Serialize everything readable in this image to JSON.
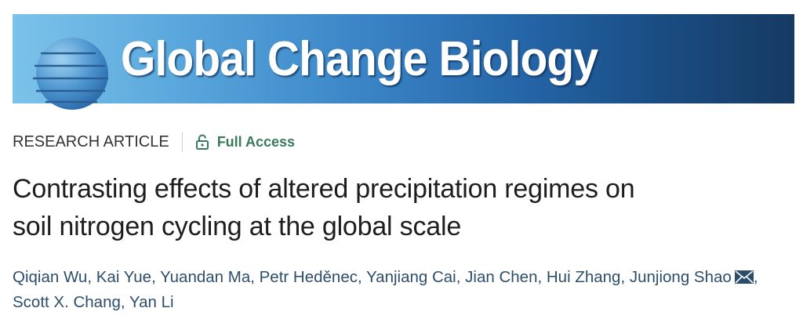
{
  "banner": {
    "journal_name": "Global Change Biology",
    "gradient_colors": [
      "#7cc3ea",
      "#163a62"
    ],
    "logo_icon": "striped-globe-icon"
  },
  "meta": {
    "article_type": "RESEARCH ARTICLE",
    "access_icon": "unlocked-padlock-icon",
    "access_label": "Full Access",
    "access_color": "#3a7a5c"
  },
  "title": {
    "line1": "Contrasting effects of altered precipitation regimes on",
    "line2": "soil nitrogen cycling at the global scale"
  },
  "authors": [
    {
      "name": "Qiqian Wu"
    },
    {
      "name": "Kai Yue"
    },
    {
      "name": "Yuandan Ma"
    },
    {
      "name": "Petr Heděnec"
    },
    {
      "name": "Yanjiang Cai"
    },
    {
      "name": "Jian Chen"
    },
    {
      "name": "Hui Zhang"
    },
    {
      "name": "Junjiong Shao",
      "corresponding": true,
      "icon": "envelope-icon"
    },
    {
      "name": "Scott X. Chang"
    },
    {
      "name": "Yan Li"
    }
  ],
  "separator": ", "
}
